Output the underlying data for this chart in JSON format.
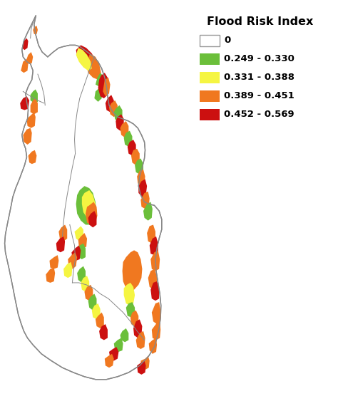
{
  "title": "Flood Risk Index",
  "legend_entries": [
    {
      "label": "0",
      "color": "#FFFFFF",
      "edgecolor": "#999999"
    },
    {
      "label": "0.249 - 0.330",
      "color": "#6BBF3A",
      "edgecolor": "none"
    },
    {
      "label": "0.331 - 0.388",
      "color": "#F5F542",
      "edgecolor": "none"
    },
    {
      "label": "0.389 - 0.451",
      "color": "#F07820",
      "edgecolor": "none"
    },
    {
      "label": "0.452 - 0.569",
      "color": "#CC1010",
      "edgecolor": "none"
    }
  ],
  "background_color": "#FFFFFF",
  "map_outline_color": "#888888",
  "figsize": [
    4.74,
    5.63
  ],
  "dpi": 100,
  "title_fontsize": 11.5,
  "title_fontweight": "bold",
  "legend_fontsize": 9.5,
  "legend_fontweight": "bold"
}
